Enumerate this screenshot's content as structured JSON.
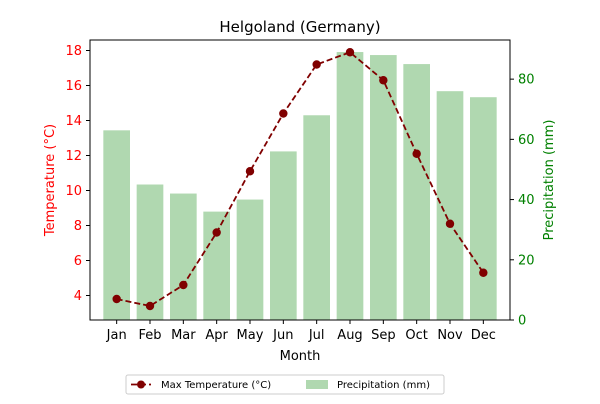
{
  "chart_data": {
    "type": "bar+line",
    "title": "Helgoland (Germany)",
    "xlabel": "Month",
    "categories": [
      "Jan",
      "Feb",
      "Mar",
      "Apr",
      "May",
      "Jun",
      "Jul",
      "Aug",
      "Sep",
      "Oct",
      "Nov",
      "Dec"
    ],
    "left_axis": {
      "label": "Temperature (°C)",
      "color": "#ff0000",
      "ylim": [
        2.6,
        18.6
      ],
      "ticks": [
        "4",
        "6",
        "8",
        "10",
        "12",
        "14",
        "16",
        "18"
      ]
    },
    "right_axis": {
      "label": "Precipitation (mm)",
      "color": "#008000",
      "ylim": [
        0,
        93
      ],
      "ticks": [
        "0",
        "20",
        "40",
        "60",
        "80"
      ]
    },
    "series": [
      {
        "name": "Max Temperature (°C)",
        "axis": "left",
        "kind": "line",
        "color": "#800000",
        "style": "dashed",
        "marker": "circle",
        "values": [
          3.8,
          3.4,
          4.6,
          7.6,
          11.1,
          14.4,
          17.2,
          17.9,
          16.3,
          12.1,
          8.1,
          5.3
        ]
      },
      {
        "name": "Precipitation (mm)",
        "axis": "right",
        "kind": "bar",
        "color": "#b0d8b0",
        "values": [
          63,
          45,
          42,
          36,
          40,
          56,
          68,
          89,
          88,
          85,
          76,
          74
        ]
      }
    ],
    "grid": false,
    "legend_position": "bottom-center"
  }
}
